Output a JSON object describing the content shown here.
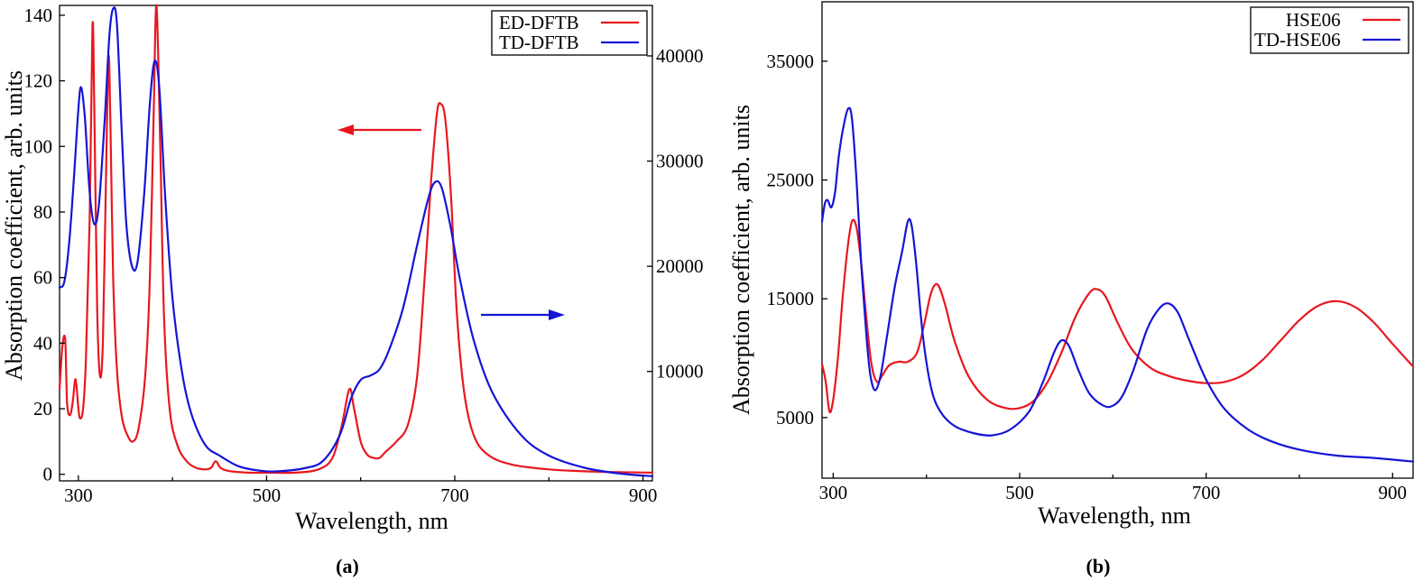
{
  "colors": {
    "red": "#e8171f",
    "blue": "#1515d6"
  },
  "chart_data": [
    {
      "type": "line",
      "panel_label": "(a)",
      "xlabel": "Wavelength, nm",
      "ylabel": "Absorption coefficient, arb. units",
      "xlim": [
        280,
        910
      ],
      "ylim_left": [
        -2,
        143
      ],
      "ylim_right": [
        -400,
        44800
      ],
      "x_ticks": [
        300,
        500,
        700,
        900
      ],
      "y_ticks_left": [
        0,
        20,
        40,
        60,
        80,
        100,
        120,
        140
      ],
      "y_ticks_right": [
        10000,
        20000,
        30000,
        40000
      ],
      "grid": false,
      "legend_position": "top-right",
      "annotations": [
        {
          "type": "arrow",
          "direction": "left",
          "color": "red",
          "meaning": "left axis"
        },
        {
          "type": "arrow",
          "direction": "right",
          "color": "blue",
          "meaning": "right axis"
        }
      ],
      "series": [
        {
          "name": "ED-DFTB",
          "color": "red",
          "axis": "left",
          "points": [
            [
              280,
              26
            ],
            [
              283,
              39
            ],
            [
              286,
              41
            ],
            [
              288,
              22
            ],
            [
              291,
              18
            ],
            [
              294,
              22
            ],
            [
              297,
              29
            ],
            [
              300,
              20
            ],
            [
              302,
              17
            ],
            [
              305,
              20
            ],
            [
              308,
              35
            ],
            [
              312,
              78
            ],
            [
              315,
              137
            ],
            [
              317,
              110
            ],
            [
              320,
              50
            ],
            [
              323,
              30
            ],
            [
              326,
              40
            ],
            [
              329,
              85
            ],
            [
              332,
              127
            ],
            [
              334,
              108
            ],
            [
              337,
              60
            ],
            [
              341,
              32
            ],
            [
              346,
              18
            ],
            [
              352,
              12
            ],
            [
              358,
              10
            ],
            [
              364,
              14
            ],
            [
              371,
              30
            ],
            [
              376,
              60
            ],
            [
              380,
              110
            ],
            [
              383,
              143
            ],
            [
              387,
              100
            ],
            [
              391,
              48
            ],
            [
              397,
              20
            ],
            [
              405,
              9
            ],
            [
              415,
              4
            ],
            [
              425,
              2
            ],
            [
              435,
              1.5
            ],
            [
              441,
              2
            ],
            [
              446,
              4
            ],
            [
              451,
              2
            ],
            [
              460,
              1
            ],
            [
              480,
              0.5
            ],
            [
              500,
              0.5
            ],
            [
              530,
              0.5
            ],
            [
              555,
              1.5
            ],
            [
              570,
              5
            ],
            [
              580,
              15
            ],
            [
              588,
              26
            ],
            [
              593,
              20
            ],
            [
              600,
              10
            ],
            [
              607,
              6
            ],
            [
              614,
              5
            ],
            [
              620,
              5
            ],
            [
              627,
              7
            ],
            [
              638,
              10
            ],
            [
              650,
              15
            ],
            [
              660,
              30
            ],
            [
              668,
              60
            ],
            [
              675,
              90
            ],
            [
              681,
              110
            ],
            [
              685,
              113
            ],
            [
              690,
              108
            ],
            [
              696,
              85
            ],
            [
              702,
              50
            ],
            [
              710,
              25
            ],
            [
              720,
              12
            ],
            [
              735,
              6
            ],
            [
              760,
              3
            ],
            [
              800,
              1.5
            ],
            [
              850,
              0.8
            ],
            [
              910,
              0.5
            ]
          ]
        },
        {
          "name": "TD-DFTB",
          "color": "blue",
          "axis": "right",
          "points": [
            [
              280,
              18000
            ],
            [
              285,
              18500
            ],
            [
              290,
              22000
            ],
            [
              295,
              28000
            ],
            [
              300,
              35000
            ],
            [
              303,
              37000
            ],
            [
              307,
              34000
            ],
            [
              312,
              27000
            ],
            [
              317,
              24000
            ],
            [
              322,
              26000
            ],
            [
              328,
              34000
            ],
            [
              333,
              42000
            ],
            [
              337,
              44500
            ],
            [
              341,
              43000
            ],
            [
              346,
              33000
            ],
            [
              351,
              24000
            ],
            [
              357,
              20000
            ],
            [
              363,
              20500
            ],
            [
              370,
              27000
            ],
            [
              376,
              35500
            ],
            [
              381,
              39500
            ],
            [
              386,
              37000
            ],
            [
              392,
              27000
            ],
            [
              400,
              17000
            ],
            [
              410,
              10000
            ],
            [
              420,
              6000
            ],
            [
              435,
              3000
            ],
            [
              450,
              2000
            ],
            [
              470,
              1000
            ],
            [
              490,
              600
            ],
            [
              510,
              500
            ],
            [
              540,
              800
            ],
            [
              560,
              1500
            ],
            [
              578,
              4000
            ],
            [
              590,
              7500
            ],
            [
              600,
              9200
            ],
            [
              610,
              9600
            ],
            [
              620,
              10200
            ],
            [
              630,
              12000
            ],
            [
              645,
              16000
            ],
            [
              660,
              22000
            ],
            [
              672,
              26500
            ],
            [
              679,
              28000
            ],
            [
              686,
              27500
            ],
            [
              695,
              24000
            ],
            [
              705,
              19000
            ],
            [
              720,
              13000
            ],
            [
              740,
              8000
            ],
            [
              770,
              4000
            ],
            [
              800,
              2000
            ],
            [
              840,
              800
            ],
            [
              880,
              250
            ],
            [
              910,
              50
            ]
          ]
        }
      ]
    },
    {
      "type": "line",
      "panel_label": "(b)",
      "xlabel": "Wavelength, nm",
      "ylabel": "Absorption coefficient, arb. units",
      "xlim": [
        288,
        922
      ],
      "ylim": [
        -100,
        40000
      ],
      "x_ticks": [
        300,
        500,
        700,
        900
      ],
      "y_ticks": [
        5000,
        15000,
        25000,
        35000
      ],
      "grid": false,
      "legend_position": "top-right",
      "series": [
        {
          "name": "HSE06",
          "color": "red",
          "points": [
            [
              288,
              9500
            ],
            [
              292,
              8000
            ],
            [
              296,
              5500
            ],
            [
              300,
              6500
            ],
            [
              305,
              10000
            ],
            [
              310,
              15000
            ],
            [
              315,
              19000
            ],
            [
              320,
              21500
            ],
            [
              325,
              21000
            ],
            [
              330,
              18000
            ],
            [
              336,
              13000
            ],
            [
              341,
              9500
            ],
            [
              347,
              8000
            ],
            [
              353,
              8600
            ],
            [
              360,
              9400
            ],
            [
              370,
              9700
            ],
            [
              380,
              9700
            ],
            [
              390,
              10500
            ],
            [
              398,
              13000
            ],
            [
              405,
              15500
            ],
            [
              412,
              16200
            ],
            [
              420,
              14500
            ],
            [
              430,
              11500
            ],
            [
              445,
              8500
            ],
            [
              465,
              6500
            ],
            [
              485,
              5800
            ],
            [
              500,
              5800
            ],
            [
              515,
              6400
            ],
            [
              530,
              8000
            ],
            [
              545,
              10500
            ],
            [
              560,
              13500
            ],
            [
              575,
              15500
            ],
            [
              583,
              15800
            ],
            [
              592,
              15200
            ],
            [
              605,
              13000
            ],
            [
              620,
              10800
            ],
            [
              640,
              9200
            ],
            [
              660,
              8500
            ],
            [
              680,
              8100
            ],
            [
              700,
              7900
            ],
            [
              720,
              8000
            ],
            [
              740,
              8600
            ],
            [
              760,
              9800
            ],
            [
              780,
              11500
            ],
            [
              800,
              13200
            ],
            [
              820,
              14400
            ],
            [
              840,
              14800
            ],
            [
              860,
              14300
            ],
            [
              880,
              13000
            ],
            [
              900,
              11200
            ],
            [
              922,
              9300
            ]
          ]
        },
        {
          "name": "TD-HSE06",
          "color": "blue",
          "points": [
            [
              288,
              21500
            ],
            [
              291,
              23000
            ],
            [
              294,
              23300
            ],
            [
              298,
              22700
            ],
            [
              302,
              24000
            ],
            [
              306,
              27000
            ],
            [
              311,
              29500
            ],
            [
              316,
              31000
            ],
            [
              320,
              30200
            ],
            [
              325,
              25000
            ],
            [
              330,
              18000
            ],
            [
              336,
              11500
            ],
            [
              340,
              8500
            ],
            [
              345,
              7300
            ],
            [
              351,
              8600
            ],
            [
              358,
              12000
            ],
            [
              366,
              16000
            ],
            [
              374,
              19000
            ],
            [
              380,
              21500
            ],
            [
              384,
              21200
            ],
            [
              389,
              18000
            ],
            [
              396,
              12000
            ],
            [
              405,
              7500
            ],
            [
              415,
              5500
            ],
            [
              430,
              4300
            ],
            [
              450,
              3700
            ],
            [
              470,
              3500
            ],
            [
              490,
              4000
            ],
            [
              510,
              5500
            ],
            [
              525,
              8000
            ],
            [
              537,
              10500
            ],
            [
              545,
              11500
            ],
            [
              553,
              11000
            ],
            [
              563,
              9000
            ],
            [
              575,
              7000
            ],
            [
              590,
              6000
            ],
            [
              600,
              6000
            ],
            [
              610,
              6800
            ],
            [
              622,
              9000
            ],
            [
              637,
              12500
            ],
            [
              650,
              14200
            ],
            [
              660,
              14600
            ],
            [
              670,
              13800
            ],
            [
              682,
              11500
            ],
            [
              700,
              8200
            ],
            [
              720,
              5700
            ],
            [
              745,
              4000
            ],
            [
              770,
              3000
            ],
            [
              800,
              2300
            ],
            [
              840,
              1800
            ],
            [
              880,
              1600
            ],
            [
              922,
              1300
            ]
          ]
        }
      ]
    }
  ]
}
